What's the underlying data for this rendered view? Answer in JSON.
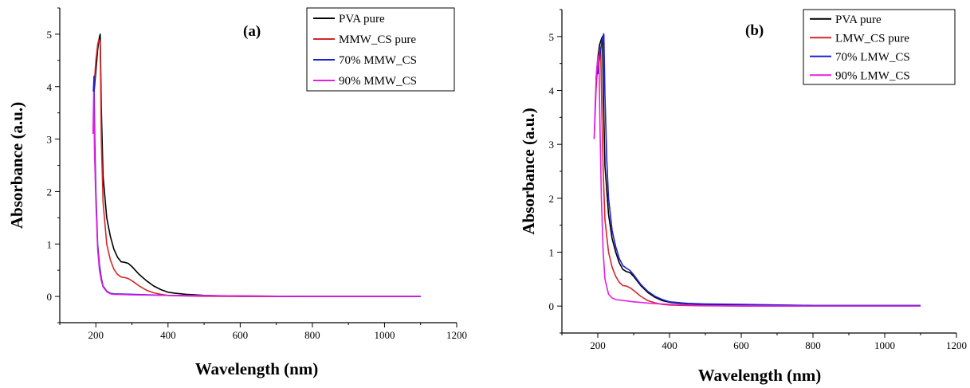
{
  "chart_data": [
    {
      "type": "line",
      "panel_label": "(a)",
      "xlabel": "Wavelength (nm)",
      "ylabel": "Absorbance (a.u.)",
      "xlim": [
        100,
        1200
      ],
      "ylim": [
        -0.5,
        5.5
      ],
      "xticks": [
        200,
        400,
        600,
        800,
        1000,
        1200
      ],
      "yticks": [
        0,
        1,
        2,
        3,
        4,
        5
      ],
      "legend_position": "top-right",
      "series": [
        {
          "name": "PVA pure",
          "color": "#000000",
          "x": [
            195,
            200,
            205,
            210,
            212,
            215,
            220,
            230,
            240,
            250,
            260,
            270,
            280,
            290,
            300,
            320,
            340,
            360,
            380,
            400,
            420,
            450,
            500,
            550,
            600,
            700,
            800,
            900,
            1000,
            1100
          ],
          "y": [
            3.9,
            4.3,
            4.7,
            4.95,
            5.0,
            3.6,
            2.3,
            1.5,
            1.15,
            0.9,
            0.75,
            0.66,
            0.65,
            0.63,
            0.57,
            0.42,
            0.3,
            0.2,
            0.13,
            0.08,
            0.06,
            0.04,
            0.02,
            0.01,
            0.005,
            0.0,
            0.0,
            0.0,
            0.0,
            0.0
          ]
        },
        {
          "name": "MMW_CS pure",
          "color": "#d62728",
          "x": [
            195,
            200,
            205,
            208,
            212,
            215,
            220,
            230,
            240,
            250,
            260,
            270,
            280,
            290,
            300,
            320,
            340,
            360,
            380,
            400,
            450,
            500,
            600,
            800,
            1000,
            1100
          ],
          "y": [
            4.0,
            4.5,
            4.8,
            4.9,
            4.85,
            3.0,
            1.8,
            1.0,
            0.7,
            0.52,
            0.42,
            0.37,
            0.36,
            0.34,
            0.3,
            0.2,
            0.12,
            0.07,
            0.04,
            0.02,
            0.01,
            0.005,
            0.0,
            0.0,
            0.0,
            0.0
          ]
        },
        {
          "name": "70% MMW_CS",
          "color": "#1f1fd1",
          "x": [
            193,
            195,
            197,
            200,
            205,
            210,
            215,
            220,
            230,
            240,
            250,
            300,
            400,
            600,
            800,
            1000,
            1100
          ],
          "y": [
            3.9,
            4.2,
            3.0,
            2.0,
            1.0,
            0.6,
            0.35,
            0.2,
            0.1,
            0.06,
            0.05,
            0.04,
            0.02,
            0.01,
            0.0,
            0.0,
            0.0
          ]
        },
        {
          "name": "90% MMW_CS",
          "color": "#e020e0",
          "x": [
            192,
            194,
            196,
            200,
            205,
            210,
            215,
            220,
            230,
            240,
            250,
            300,
            400,
            600,
            800,
            1000,
            1100
          ],
          "y": [
            3.1,
            3.9,
            2.8,
            1.8,
            0.9,
            0.5,
            0.3,
            0.18,
            0.09,
            0.05,
            0.04,
            0.03,
            0.02,
            0.01,
            0.0,
            0.0,
            0.0
          ]
        }
      ]
    },
    {
      "type": "line",
      "panel_label": "(b)",
      "xlabel": "Wavelength (nm)",
      "ylabel": "Absorbance (a.u.)",
      "xlim": [
        100,
        1200
      ],
      "ylim": [
        -0.5,
        5.5
      ],
      "xticks": [
        200,
        400,
        600,
        800,
        1000,
        1200
      ],
      "yticks": [
        0,
        1,
        2,
        3,
        4,
        5
      ],
      "legend_position": "top-right",
      "series": [
        {
          "name": "PVA pure",
          "color": "#000000",
          "x": [
            195,
            200,
            205,
            210,
            213,
            216,
            220,
            230,
            240,
            250,
            260,
            270,
            280,
            290,
            300,
            320,
            340,
            360,
            380,
            400,
            450,
            500,
            600,
            800,
            1000,
            1100
          ],
          "y": [
            4.2,
            4.6,
            4.85,
            4.95,
            5.0,
            3.8,
            2.6,
            1.7,
            1.25,
            1.0,
            0.8,
            0.68,
            0.64,
            0.62,
            0.55,
            0.38,
            0.25,
            0.16,
            0.1,
            0.07,
            0.04,
            0.03,
            0.02,
            0.01,
            0.01,
            0.01
          ]
        },
        {
          "name": "LMW_CS pure",
          "color": "#d62728",
          "x": [
            190,
            195,
            200,
            205,
            208,
            212,
            215,
            220,
            230,
            240,
            250,
            260,
            270,
            280,
            290,
            300,
            320,
            340,
            360,
            380,
            400,
            450,
            500,
            600,
            800,
            1000,
            1100
          ],
          "y": [
            3.1,
            4.0,
            4.5,
            4.75,
            4.8,
            3.4,
            2.5,
            1.6,
            1.0,
            0.72,
            0.55,
            0.44,
            0.38,
            0.37,
            0.34,
            0.29,
            0.18,
            0.1,
            0.06,
            0.03,
            0.02,
            0.01,
            0.005,
            0.0,
            0.0,
            0.0,
            0.0
          ]
        },
        {
          "name": "70% LMW_CS",
          "color": "#1f1fd1",
          "x": [
            200,
            205,
            210,
            214,
            217,
            220,
            225,
            230,
            240,
            250,
            260,
            270,
            280,
            290,
            300,
            320,
            340,
            360,
            380,
            400,
            450,
            500,
            600,
            800,
            1000,
            1100
          ],
          "y": [
            4.3,
            4.6,
            4.85,
            5.0,
            5.05,
            3.9,
            2.7,
            2.0,
            1.4,
            1.1,
            0.88,
            0.75,
            0.7,
            0.66,
            0.58,
            0.4,
            0.27,
            0.18,
            0.12,
            0.08,
            0.05,
            0.04,
            0.03,
            0.01,
            0.01,
            0.01
          ]
        },
        {
          "name": "90% LMW_CS",
          "color": "#e020e0",
          "x": [
            190,
            193,
            196,
            200,
            203,
            206,
            210,
            215,
            220,
            230,
            240,
            250,
            300,
            350,
            400,
            500,
            600,
            800,
            1000,
            1100
          ],
          "y": [
            3.1,
            3.8,
            4.3,
            4.6,
            4.65,
            3.4,
            2.0,
            1.0,
            0.5,
            0.22,
            0.15,
            0.12,
            0.08,
            0.05,
            0.03,
            0.01,
            0.005,
            0.0,
            0.0,
            0.0
          ]
        }
      ]
    }
  ]
}
